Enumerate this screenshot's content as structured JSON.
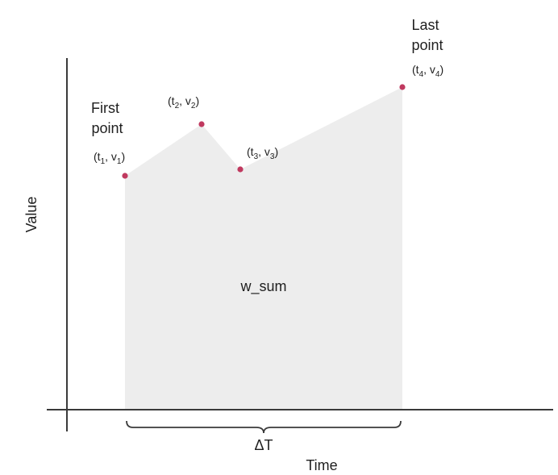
{
  "colors": {
    "area_fill": "#ededed",
    "axis": "#3a3a3a",
    "point": "#c0395f",
    "text": "#1f1f1f"
  },
  "axes": {
    "y_label": "Value",
    "x_label": "Time"
  },
  "area_label": "w_sum",
  "span_label": "ΔT",
  "callouts": {
    "first": [
      "First",
      "point"
    ],
    "last": [
      "Last",
      "point"
    ]
  },
  "points": [
    {
      "t": "t",
      "t_sub": "1",
      "v": "v",
      "v_sub": "1"
    },
    {
      "t": "t",
      "t_sub": "2",
      "v": "v",
      "v_sub": "2"
    },
    {
      "t": "t",
      "t_sub": "3",
      "v": "v",
      "v_sub": "3"
    },
    {
      "t": "t",
      "t_sub": "4",
      "v": "v",
      "v_sub": "4"
    }
  ]
}
